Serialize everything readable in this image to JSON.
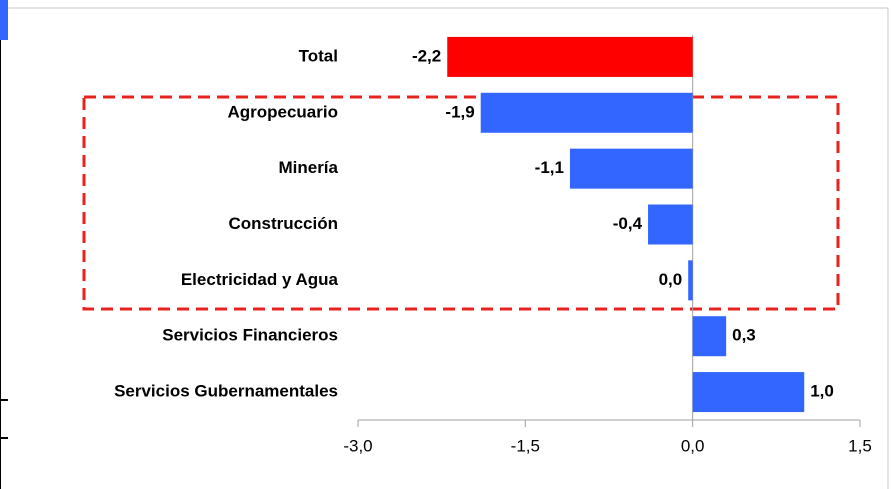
{
  "chart_data": {
    "type": "bar",
    "orientation": "horizontal",
    "categories": [
      "Total",
      "Agropecuario",
      "Minería",
      "Construcción",
      "Electricidad y Agua",
      "Servicios Financieros",
      "Servicios Gubernamentales"
    ],
    "values": [
      -2.2,
      -1.9,
      -1.1,
      -0.4,
      -0.04,
      0.3,
      1.0
    ],
    "value_labels": [
      "-2,2",
      "-1,9",
      "-1,1",
      "-0,4",
      "0,0",
      "0,3",
      "1,0"
    ],
    "colors": [
      "#ff0000",
      "#3366ff",
      "#3366ff",
      "#3366ff",
      "#3366ff",
      "#3366ff",
      "#3366ff"
    ],
    "xlim": [
      -3.0,
      1.5
    ],
    "xticks": [
      {
        "value": -3.0,
        "label": "-3,0"
      },
      {
        "value": -1.5,
        "label": "-1,5"
      },
      {
        "value": 0.0,
        "label": "0,0"
      },
      {
        "value": 1.5,
        "label": "1,5"
      }
    ]
  }
}
